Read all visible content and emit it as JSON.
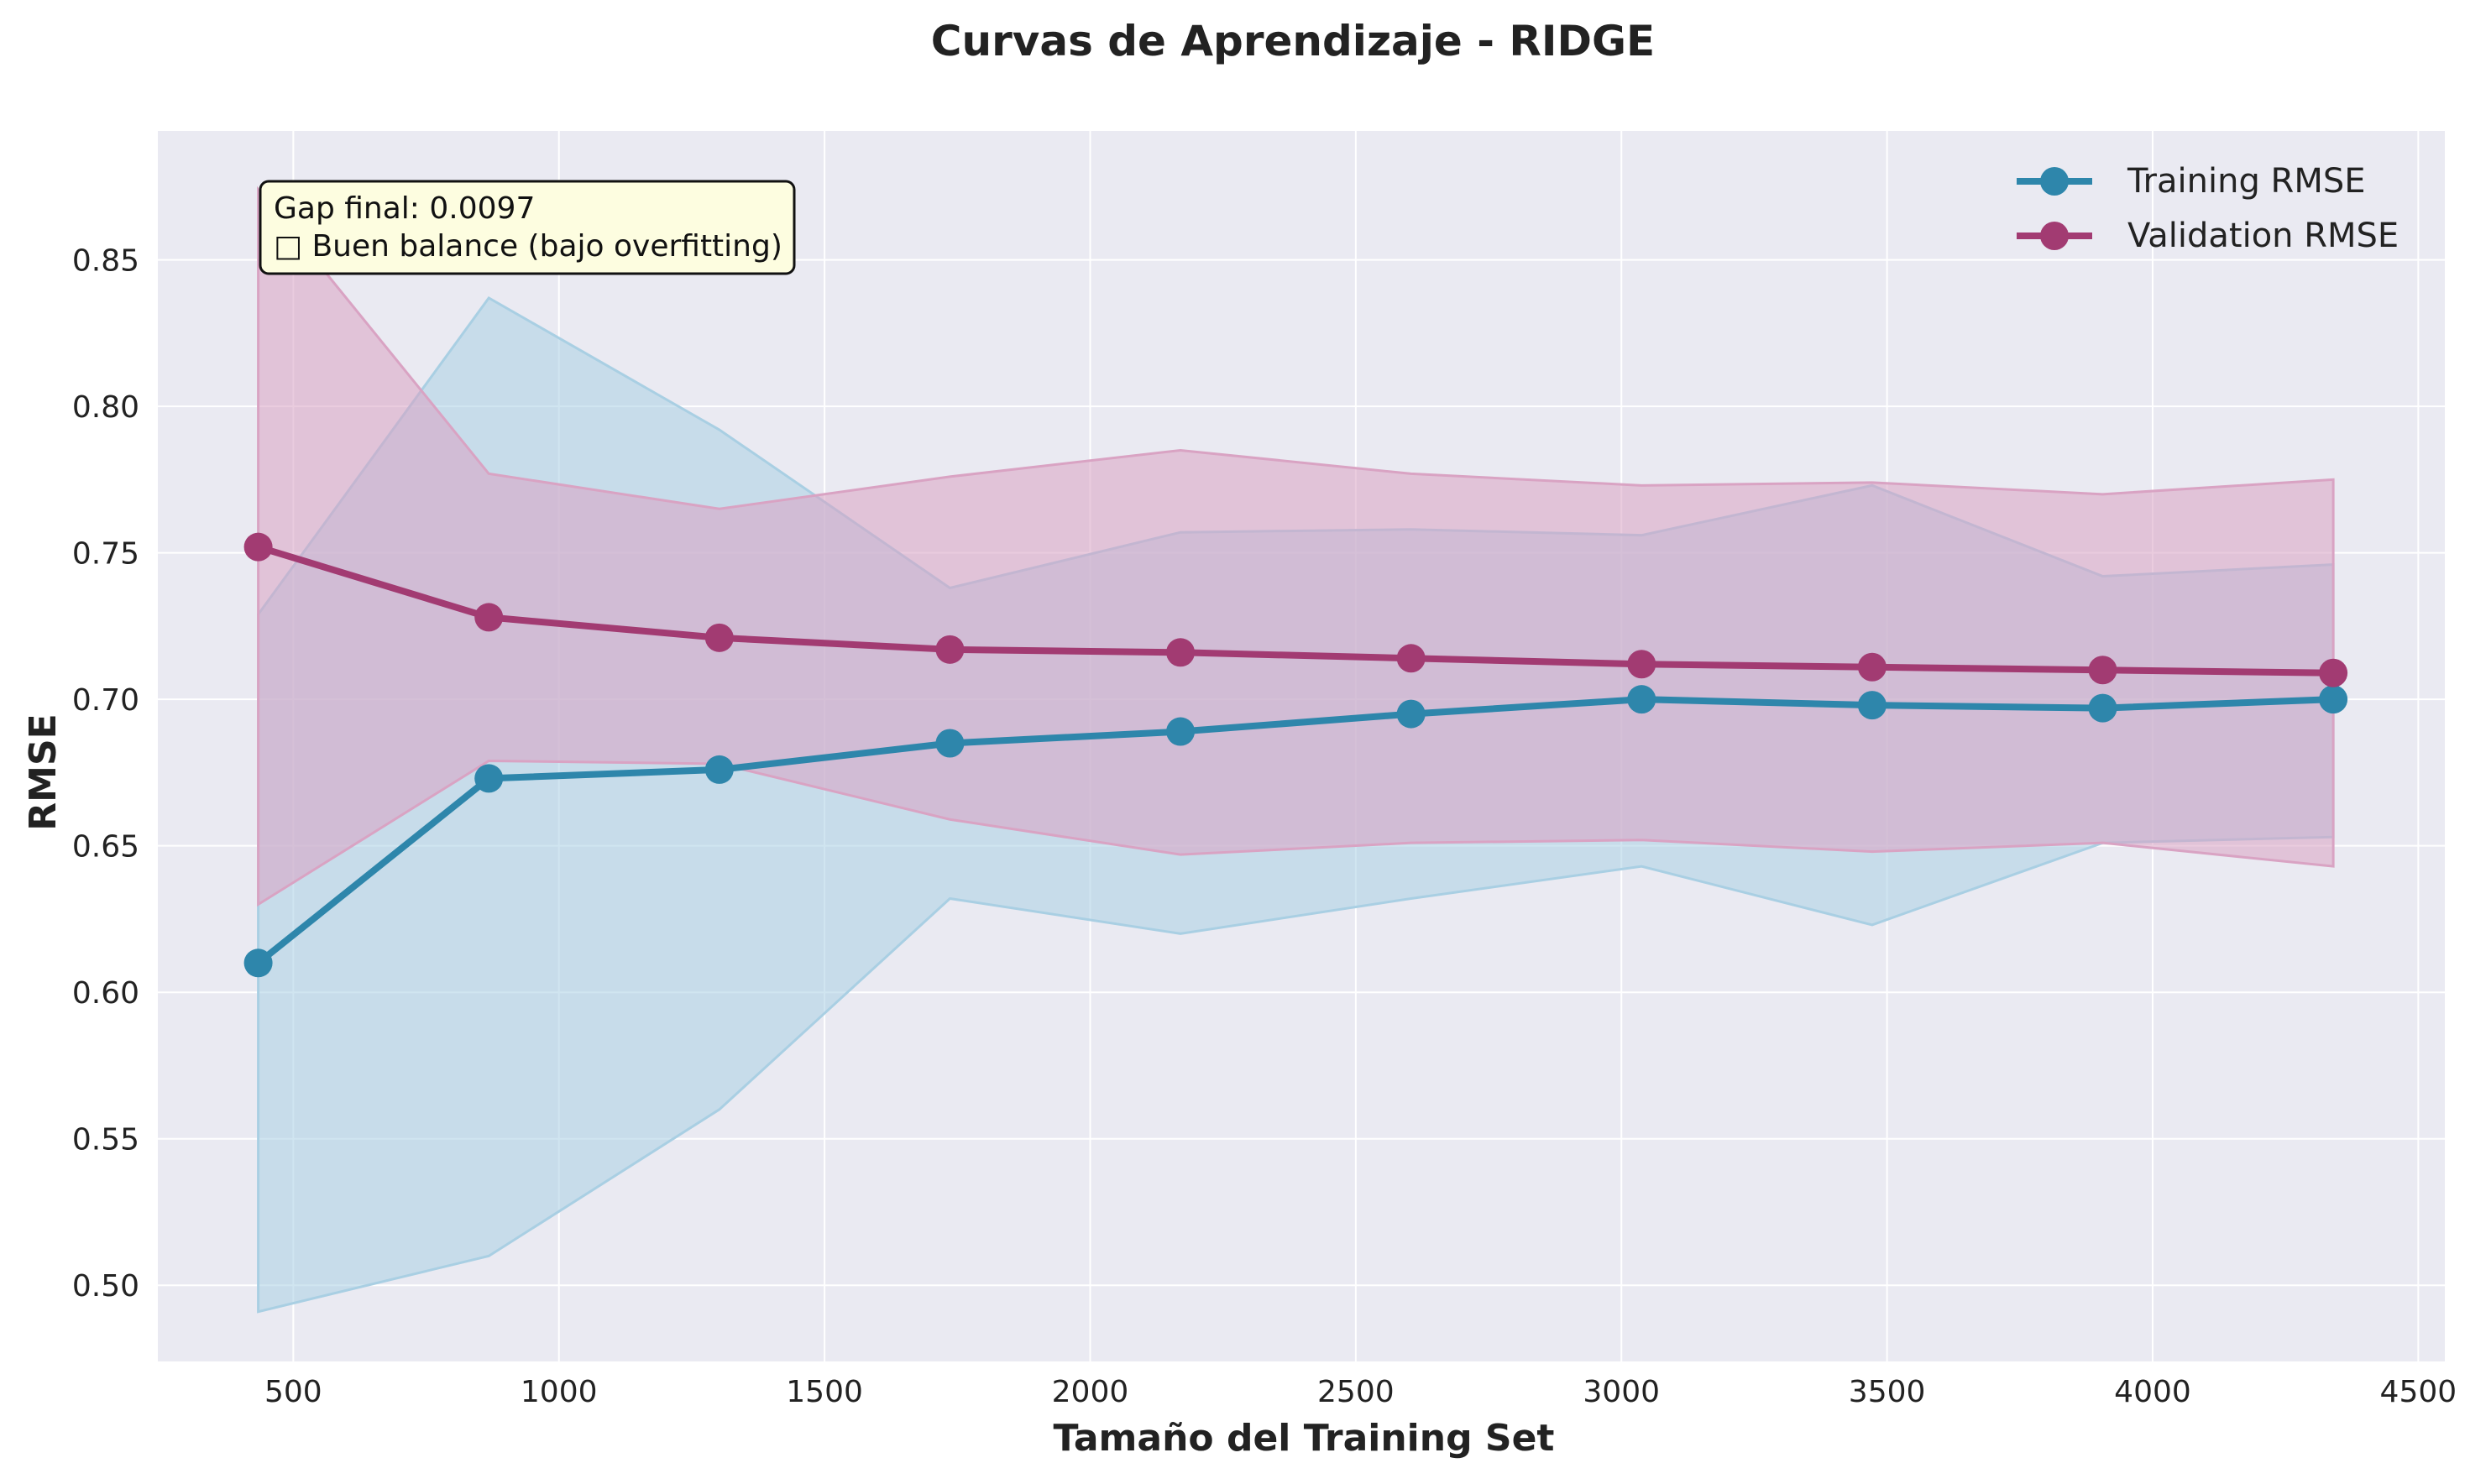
{
  "chart_data": {
    "type": "line",
    "title": "Curvas de Aprendizaje - RIDGE",
    "xlabel": "Tamaño del Training Set",
    "ylabel": "RMSE",
    "xlim": [
      245,
      4550
    ],
    "ylim": [
      0.474,
      0.894
    ],
    "xticks": [
      500,
      1000,
      1500,
      2000,
      2500,
      3000,
      3500,
      4000,
      4500
    ],
    "yticks": [
      0.5,
      0.55,
      0.6,
      0.65,
      0.7,
      0.75,
      0.8,
      0.85
    ],
    "grid": true,
    "legend_position": "top-right",
    "x": [
      434,
      868,
      1302,
      1736,
      2170,
      2604,
      3038,
      3472,
      3906,
      4340
    ],
    "series": [
      {
        "name": "Training RMSE",
        "color": "#2e86ab",
        "band_color": "#a9cfe3",
        "values": [
          0.61,
          0.673,
          0.676,
          0.685,
          0.689,
          0.695,
          0.7,
          0.698,
          0.697,
          0.7
        ],
        "band_upper": [
          0.729,
          0.837,
          0.792,
          0.738,
          0.757,
          0.758,
          0.756,
          0.773,
          0.742,
          0.746
        ],
        "band_lower": [
          0.491,
          0.51,
          0.56,
          0.632,
          0.62,
          0.632,
          0.643,
          0.623,
          0.651,
          0.653
        ]
      },
      {
        "name": "Validation RMSE",
        "color": "#a23b72",
        "band_color": "#d9a3c3",
        "values": [
          0.752,
          0.728,
          0.721,
          0.717,
          0.716,
          0.714,
          0.712,
          0.711,
          0.71,
          0.709
        ],
        "band_upper": [
          0.874,
          0.777,
          0.765,
          0.776,
          0.785,
          0.777,
          0.773,
          0.774,
          0.77,
          0.775
        ],
        "band_lower": [
          0.63,
          0.679,
          0.678,
          0.659,
          0.647,
          0.651,
          0.652,
          0.648,
          0.651,
          0.643
        ]
      }
    ],
    "annotation": {
      "line1": "Gap final: 0.0097",
      "line2": "□ Buen balance (bajo overfitting)",
      "background": "#fdfde0"
    }
  }
}
